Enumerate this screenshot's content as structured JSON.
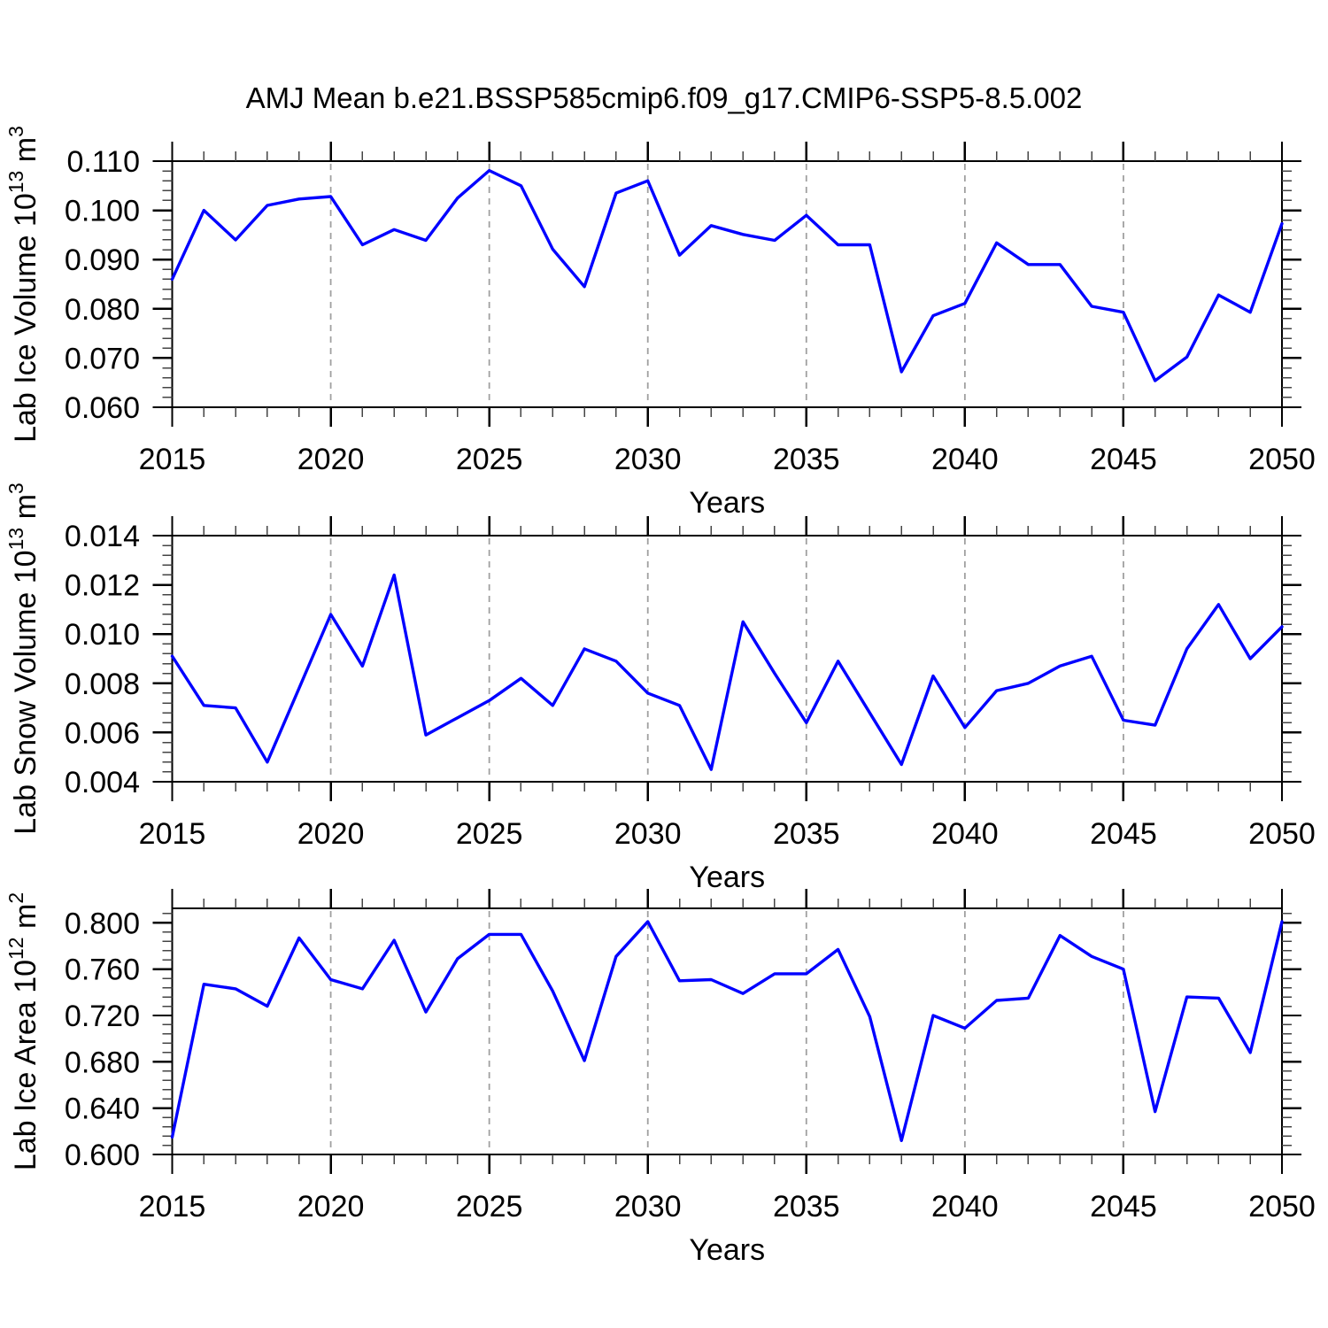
{
  "title": "AMJ Mean b.e21.BSSP585cmip6.f09_g17.CMIP6-SSP5-8.5.002",
  "years": [
    2015,
    2016,
    2017,
    2018,
    2019,
    2020,
    2021,
    2022,
    2023,
    2024,
    2025,
    2026,
    2027,
    2028,
    2029,
    2030,
    2031,
    2032,
    2033,
    2034,
    2035,
    2036,
    2037,
    2038,
    2039,
    2040,
    2041,
    2042,
    2043,
    2044,
    2045,
    2046,
    2047,
    2048,
    2049,
    2050
  ],
  "style": {
    "line_color": "#0000ff",
    "grid_color": "#a0a0a0",
    "axis_color": "#000000",
    "minor_tick_color": "#444444"
  },
  "chart_data": [
    {
      "type": "line",
      "ylabel": "Lab Ice Volume 10^13 m^3",
      "ylabel_parts": [
        {
          "text": "Lab Ice Volume 10",
          "sup": false
        },
        {
          "text": "13",
          "sup": true
        },
        {
          "text": " m",
          "sup": false
        },
        {
          "text": "3",
          "sup": true
        }
      ],
      "xlabel": "Years",
      "values": [
        0.086,
        0.1,
        0.094,
        0.101,
        0.1023,
        0.1028,
        0.093,
        0.0961,
        0.0939,
        0.1025,
        0.1081,
        0.105,
        0.0921,
        0.0845,
        0.1035,
        0.106,
        0.0909,
        0.0969,
        0.0951,
        0.0939,
        0.099,
        0.093,
        0.093,
        0.0672,
        0.0786,
        0.0811,
        0.0934,
        0.089,
        0.089,
        0.0805,
        0.0793,
        0.0654,
        0.0702,
        0.0828,
        0.0793,
        0.0973
      ],
      "ylim": [
        0.06,
        0.11
      ],
      "ytick_values": [
        0.11,
        0.1,
        0.09,
        0.08,
        0.07,
        0.06
      ],
      "ytick_labels": [
        "0.110",
        "0.100",
        "0.090",
        "0.080",
        "0.070",
        "0.060"
      ],
      "y_minor_step": 0.002,
      "xtick_values": [
        2015,
        2020,
        2025,
        2030,
        2035,
        2040,
        2045,
        2050
      ],
      "xtick_labels": [
        "2015",
        "2020",
        "2025",
        "2030",
        "2035",
        "2040",
        "2045",
        "2050"
      ],
      "x_minor_step": 1,
      "grid_x": [
        2020,
        2025,
        2030,
        2035,
        2040,
        2045
      ],
      "line_color": "#0000ff",
      "grid": "vertical-dashed"
    },
    {
      "type": "line",
      "ylabel": "Lab Snow Volume 10^13 m^3",
      "ylabel_parts": [
        {
          "text": "Lab Snow Volume 10",
          "sup": false
        },
        {
          "text": "13",
          "sup": true
        },
        {
          "text": " m",
          "sup": false
        },
        {
          "text": "3",
          "sup": true
        }
      ],
      "xlabel": "Years",
      "values": [
        0.0091,
        0.0071,
        0.007,
        0.0048,
        0.0078,
        0.0108,
        0.0087,
        0.0124,
        0.0059,
        0.0066,
        0.0073,
        0.0082,
        0.0071,
        0.0094,
        0.0089,
        0.0076,
        0.0071,
        0.0045,
        0.0105,
        0.0084,
        0.0064,
        0.0089,
        0.0068,
        0.0047,
        0.0083,
        0.0062,
        0.0077,
        0.008,
        0.0087,
        0.0091,
        0.0065,
        0.0063,
        0.0094,
        0.0112,
        0.009,
        0.0103
      ],
      "ylim": [
        0.004,
        0.014
      ],
      "ytick_values": [
        0.014,
        0.012,
        0.01,
        0.008,
        0.006,
        0.004
      ],
      "ytick_labels": [
        "0.014",
        "0.012",
        "0.010",
        "0.008",
        "0.006",
        "0.004"
      ],
      "y_minor_step": 0.0004,
      "xtick_values": [
        2015,
        2020,
        2025,
        2030,
        2035,
        2040,
        2045,
        2050
      ],
      "xtick_labels": [
        "2015",
        "2020",
        "2025",
        "2030",
        "2035",
        "2040",
        "2045",
        "2050"
      ],
      "x_minor_step": 1,
      "grid_x": [
        2020,
        2025,
        2030,
        2035,
        2040,
        2045
      ],
      "line_color": "#0000ff",
      "grid": "vertical-dashed"
    },
    {
      "type": "line",
      "ylabel": "Lab Ice Area 10^12 m^2",
      "ylabel_parts": [
        {
          "text": "Lab Ice Area 10",
          "sup": false
        },
        {
          "text": "12",
          "sup": true
        },
        {
          "text": " m",
          "sup": false
        },
        {
          "text": "2",
          "sup": true
        }
      ],
      "xlabel": "Years",
      "values": [
        0.615,
        0.747,
        0.743,
        0.728,
        0.787,
        0.751,
        0.743,
        0.785,
        0.723,
        0.769,
        0.79,
        0.79,
        0.741,
        0.681,
        0.771,
        0.801,
        0.75,
        0.751,
        0.739,
        0.756,
        0.756,
        0.777,
        0.719,
        0.612,
        0.72,
        0.709,
        0.733,
        0.735,
        0.789,
        0.771,
        0.76,
        0.637,
        0.736,
        0.735,
        0.688,
        0.801
      ],
      "ylim": [
        0.6,
        0.8125
      ],
      "ytick_values": [
        0.8,
        0.76,
        0.72,
        0.68,
        0.64,
        0.6
      ],
      "ytick_labels": [
        "0.800",
        "0.760",
        "0.720",
        "0.680",
        "0.640",
        "0.600"
      ],
      "y_minor_step": 0.008,
      "xtick_values": [
        2015,
        2020,
        2025,
        2030,
        2035,
        2040,
        2045,
        2050
      ],
      "xtick_labels": [
        "2015",
        "2020",
        "2025",
        "2030",
        "2035",
        "2040",
        "2045",
        "2050"
      ],
      "x_minor_step": 1,
      "grid_x": [
        2020,
        2025,
        2030,
        2035,
        2040,
        2045
      ],
      "line_color": "#0000ff",
      "grid": "vertical-dashed"
    }
  ]
}
